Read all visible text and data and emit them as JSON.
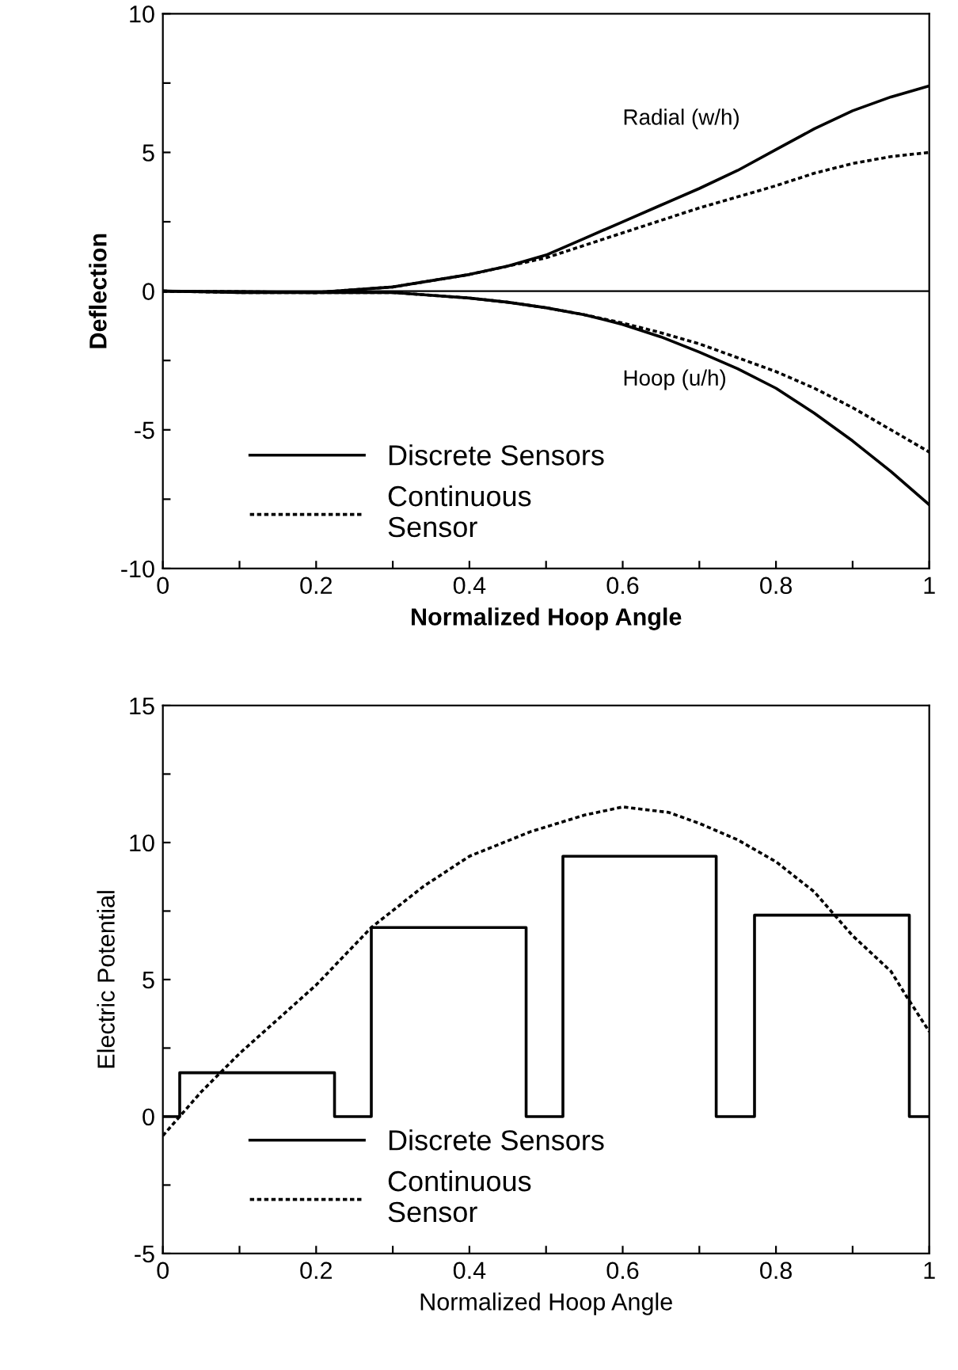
{
  "chart_data": [
    {
      "type": "line",
      "xlabel": "Normalized Hoop Angle",
      "ylabel": "Deflection",
      "x": [
        0,
        0.1,
        0.2,
        0.3,
        0.4,
        0.45,
        0.5,
        0.55,
        0.6,
        0.65,
        0.7,
        0.75,
        0.8,
        0.85,
        0.9,
        0.95,
        1
      ],
      "series": [
        {
          "name": "Discrete Sensors",
          "color": "#000000",
          "line_style": "solid",
          "values": [
            0,
            -0.05,
            -0.05,
            0.15,
            0.6,
            0.9,
            1.3,
            1.9,
            2.5,
            3.1,
            3.7,
            4.35,
            5.1,
            5.85,
            6.5,
            7.0,
            7.4
          ]
        },
        {
          "name": "Continuous\nSensor",
          "color": "#000000",
          "line_style": "dotted",
          "values": [
            0,
            -0.05,
            -0.05,
            0.15,
            0.6,
            0.9,
            1.2,
            1.65,
            2.1,
            2.55,
            3.0,
            3.4,
            3.8,
            4.25,
            4.6,
            4.85,
            5.0
          ]
        },
        {
          "color": "#000000",
          "line_style": "solid",
          "values": [
            0,
            -0.02,
            -0.05,
            -0.05,
            -0.25,
            -0.4,
            -0.6,
            -0.85,
            -1.2,
            -1.65,
            -2.2,
            -2.8,
            -3.5,
            -4.4,
            -5.4,
            -6.5,
            -7.7
          ]
        },
        {
          "color": "#000000",
          "line_style": "dotted",
          "values": [
            0,
            -0.02,
            -0.05,
            -0.05,
            -0.25,
            -0.4,
            -0.6,
            -0.85,
            -1.15,
            -1.5,
            -1.9,
            -2.4,
            -2.9,
            -3.5,
            -4.2,
            -5.0,
            -5.8
          ]
        }
      ],
      "annotations": [
        "Radial (w/h)",
        "Hoop (u/h)"
      ],
      "ref_lines": [
        {
          "axis": "y",
          "value": 0,
          "color": "#000000"
        }
      ],
      "xlim": [
        0,
        1
      ],
      "ylim": [
        -10,
        10
      ],
      "xticks": [
        0,
        {
          "value": 0.1,
          "label": null
        },
        0.2,
        {
          "value": 0.3,
          "label": null
        },
        0.4,
        {
          "value": 0.5,
          "label": null
        },
        0.6,
        {
          "value": 0.7,
          "label": null
        },
        0.8,
        {
          "value": 0.9,
          "label": null
        },
        1
      ],
      "yticks": [
        -10,
        {
          "value": -7.5,
          "label": null
        },
        -5,
        {
          "value": -2.5,
          "label": null
        },
        0,
        {
          "value": 2.5,
          "label": null
        },
        5,
        {
          "value": 7.5,
          "label": null
        },
        10
      ],
      "grid": false,
      "legend": "bottom left"
    },
    {
      "type": "line",
      "xlabel": "Normalized Hoop Angle",
      "ylabel": "Electric Potential",
      "series": [
        {
          "name": "Discrete Sensors",
          "type": "step",
          "color": "#000000",
          "line_style": "solid",
          "x": [
            0,
            0.022,
            0.224,
            0.272,
            0.474,
            0.522,
            0.722,
            0.772,
            0.974,
            1
          ],
          "values": [
            0,
            1.6,
            0,
            6.9,
            0,
            9.5,
            0,
            7.35,
            0,
            0
          ]
        },
        {
          "name": "Continuous\nSensor",
          "color": "#000000",
          "line_style": "dotted",
          "x": [
            0,
            0.05,
            0.1,
            0.2,
            0.272,
            0.34,
            0.4,
            0.48,
            0.55,
            0.6,
            0.66,
            0.7,
            0.75,
            0.8,
            0.85,
            0.9,
            0.95,
            0.97,
            1
          ],
          "values": [
            -0.7,
            0.9,
            2.3,
            4.8,
            6.9,
            8.4,
            9.5,
            10.4,
            11.0,
            11.3,
            11.1,
            10.7,
            10.1,
            9.3,
            8.2,
            6.6,
            5.3,
            4.4,
            3.1
          ]
        }
      ],
      "xlim": [
        0,
        1
      ],
      "ylim": [
        -5,
        15
      ],
      "xticks": [
        0,
        {
          "value": 0.1,
          "label": null
        },
        0.2,
        {
          "value": 0.3,
          "label": null
        },
        0.4,
        {
          "value": 0.5,
          "label": null
        },
        0.6,
        {
          "value": 0.7,
          "label": null
        },
        0.8,
        {
          "value": 0.9,
          "label": null
        },
        1
      ],
      "yticks": [
        -5,
        {
          "value": -2.5,
          "label": null
        },
        0,
        {
          "value": 2.5,
          "label": null
        },
        5,
        {
          "value": 7.5,
          "label": null
        },
        10,
        {
          "value": 12.5,
          "label": null
        },
        15
      ],
      "grid": false,
      "legend": "bottom left"
    }
  ]
}
